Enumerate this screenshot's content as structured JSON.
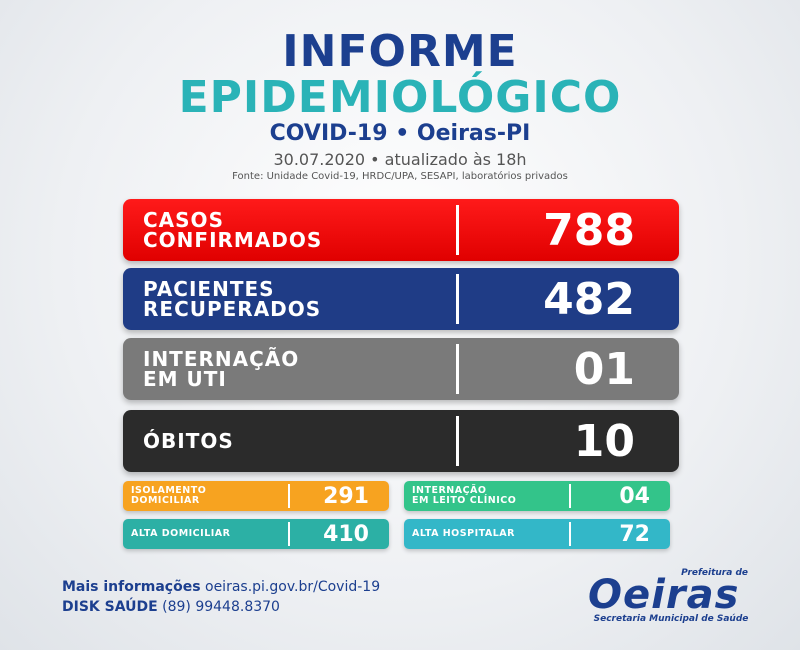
{
  "header": {
    "title_line1": "INFORME",
    "title_line2": "EPIDEMIOLÓGICO",
    "subtitle": "COVID-19 • Oeiras-PI",
    "date": "30.07.2020 • atualizado às 18h",
    "source": "Fonte: Unidade Covid-19, HRDC/UPA, SESAPI, laboratórios privados"
  },
  "main_stats": [
    {
      "label": "CASOS\nCONFIRMADOS",
      "value": "788",
      "color": "#e00000"
    },
    {
      "label": "PACIENTES\nRECUPERADOS",
      "value": "482",
      "color": "#1f3c86"
    },
    {
      "label": "INTERNAÇÃO\nEM UTI",
      "value": "01",
      "color": "#7a7a7a"
    },
    {
      "label": "ÓBITOS",
      "value": "10",
      "color": "#2b2b2b"
    }
  ],
  "small_stats": [
    {
      "label": "ISOLAMENTO\nDOMICILIAR",
      "value": "291",
      "color": "#f7a320"
    },
    {
      "label": "INTERNAÇÃO\nEM LEITO CLÍNICO",
      "value": "04",
      "color": "#33c48a"
    },
    {
      "label": "ALTA DOMICILIAR",
      "value": "410",
      "color": "#2cb0a5"
    },
    {
      "label": "ALTA HOSPITALAR",
      "value": "72",
      "color": "#33b7c8"
    }
  ],
  "footer": {
    "info_label": "Mais informações",
    "info_value": "oeiras.pi.gov.br/Covid-19",
    "disk_label": "DISK SAÚDE",
    "disk_value": "(89) 99448.8370"
  },
  "logo": {
    "prefeitura": "Prefeitura de",
    "name": "Oeiras",
    "secretaria": "Secretaria Municipal de Saúde"
  }
}
